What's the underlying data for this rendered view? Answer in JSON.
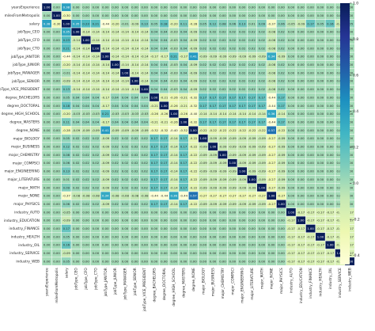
{
  "chart_data": {
    "type": "heatmap",
    "title": "",
    "xlabel": "",
    "ylabel": "",
    "labels": [
      "yearsExperience",
      "milesFromMetropolis",
      "salary",
      "jobType_CEO",
      "jobType_CFO",
      "jobType_CTO",
      "jobType_JANITOR",
      "jobType_JUNIOR",
      "jobType_MANAGER",
      "jobType_SENIOR",
      "jobType_VICE_PRESIDENT",
      "degree_BACHELORS",
      "degree_DOCTORAL",
      "degree_HIGH_SCHOOL",
      "degree_MASTERS",
      "degree_NONE",
      "major_BIOLOGY",
      "major_BUSINESS",
      "major_CHEMISTRY",
      "major_COMPSCI",
      "major_ENGINEERING",
      "major_LITERATURE",
      "major_MATH",
      "major_NONE",
      "major_PHYSICS",
      "industry_AUTO",
      "industry_EDUCATION",
      "industry_FINANCE",
      "industry_HEALTH",
      "industry_OIL",
      "industry_SERVICE",
      "industry_WEB"
    ],
    "values": [
      [
        1.0,
        0.0,
        0.38,
        0.0,
        0.0,
        0.0,
        0.0,
        0.0,
        0.0,
        0.0,
        0.0,
        0.0,
        0.0,
        0.0,
        0.0,
        0.0,
        0.0,
        0.0,
        0.0,
        0.0,
        0.0,
        0.0,
        0.0,
        0.0,
        0.0,
        0.0,
        0.0,
        0.0,
        0.0,
        0.0,
        0.0,
        0.0
      ],
      [
        0.0,
        1.0,
        -0.3,
        0.0,
        0.0,
        0.0,
        0.0,
        0.0,
        0.0,
        0.0,
        0.0,
        0.0,
        0.0,
        0.0,
        0.0,
        0.0,
        0.0,
        0.0,
        0.0,
        0.0,
        0.0,
        0.0,
        0.0,
        0.0,
        0.0,
        0.0,
        0.0,
        0.0,
        0.0,
        0.0,
        0.0,
        0.0
      ],
      [
        0.38,
        -0.3,
        1.0,
        0.35,
        0.23,
        0.21,
        -0.44,
        -0.2,
        -0.01,
        -0.09,
        0.13,
        0.05,
        0.18,
        -0.2,
        0.11,
        -0.28,
        0.05,
        0.12,
        0.08,
        0.06,
        0.13,
        0.01,
        0.09,
        -0.37,
        0.06,
        -0.05,
        -0.09,
        0.17,
        0.05,
        0.16,
        -0.09,
        0.05
      ],
      [
        0.0,
        0.0,
        0.35,
        1.0,
        -0.14,
        -0.14,
        -0.14,
        -0.14,
        -0.14,
        -0.14,
        -0.14,
        0.04,
        0.04,
        -0.03,
        0.04,
        -0.09,
        0.02,
        0.02,
        0.02,
        0.02,
        0.02,
        0.02,
        0.02,
        -0.08,
        0.02,
        0.0,
        0.0,
        0.0,
        0.0,
        0.0,
        0.0,
        0.0
      ],
      [
        0.0,
        0.0,
        0.23,
        -0.14,
        1.0,
        -0.14,
        -0.14,
        -0.14,
        -0.14,
        -0.14,
        -0.14,
        0.04,
        0.04,
        -0.03,
        0.04,
        -0.09,
        0.02,
        0.02,
        0.02,
        0.02,
        0.02,
        0.02,
        0.02,
        -0.08,
        0.02,
        0.0,
        0.0,
        0.0,
        0.0,
        0.0,
        0.0,
        0.0
      ],
      [
        0.0,
        0.0,
        0.21,
        -0.14,
        -0.14,
        1.0,
        -0.14,
        -0.14,
        -0.14,
        -0.14,
        -0.14,
        0.04,
        0.04,
        -0.03,
        0.04,
        -0.09,
        0.02,
        0.02,
        0.02,
        0.02,
        0.02,
        0.02,
        0.02,
        -0.08,
        0.02,
        0.0,
        0.0,
        0.0,
        0.0,
        0.0,
        0.0,
        0.0
      ],
      [
        0.0,
        0.0,
        -0.44,
        -0.14,
        -0.14,
        -0.14,
        1.0,
        -0.14,
        -0.14,
        -0.14,
        -0.14,
        -0.17,
        -0.17,
        0.21,
        -0.17,
        0.41,
        -0.09,
        -0.09,
        -0.09,
        -0.09,
        -0.09,
        -0.09,
        -0.09,
        0.34,
        -0.09,
        0.0,
        0.0,
        0.0,
        0.0,
        0.0,
        0.0,
        0.0
      ],
      [
        0.0,
        0.0,
        -0.2,
        -0.14,
        -0.14,
        -0.14,
        -0.14,
        1.0,
        -0.14,
        -0.14,
        -0.14,
        0.04,
        0.04,
        -0.03,
        0.04,
        -0.09,
        0.02,
        0.02,
        0.02,
        0.02,
        0.02,
        0.02,
        0.02,
        -0.08,
        0.02,
        0.0,
        0.0,
        0.0,
        0.0,
        0.0,
        0.0,
        0.0
      ],
      [
        0.0,
        0.0,
        -0.01,
        -0.14,
        -0.14,
        -0.14,
        -0.14,
        -0.14,
        1.0,
        -0.14,
        -0.14,
        0.04,
        0.04,
        -0.03,
        0.04,
        -0.09,
        0.02,
        0.02,
        0.02,
        0.02,
        0.02,
        0.02,
        0.02,
        -0.08,
        0.02,
        0.0,
        0.0,
        0.0,
        0.0,
        0.0,
        0.0,
        0.0
      ],
      [
        0.0,
        0.0,
        -0.09,
        -0.14,
        -0.14,
        -0.14,
        -0.14,
        -0.14,
        -0.14,
        1.0,
        -0.14,
        0.04,
        0.04,
        -0.03,
        0.04,
        -0.09,
        0.02,
        0.02,
        0.02,
        0.02,
        0.02,
        0.02,
        0.02,
        -0.08,
        0.02,
        0.0,
        0.0,
        0.0,
        0.0,
        0.0,
        0.0,
        0.0
      ],
      [
        0.0,
        0.0,
        0.13,
        -0.14,
        -0.14,
        -0.14,
        -0.14,
        -0.14,
        -0.14,
        -0.14,
        1.0,
        0.04,
        0.04,
        -0.03,
        0.04,
        -0.09,
        0.02,
        0.02,
        0.02,
        0.02,
        0.02,
        0.02,
        0.02,
        -0.08,
        0.02,
        0.0,
        0.0,
        0.0,
        0.0,
        0.0,
        0.0,
        0.0
      ],
      [
        0.0,
        0.0,
        0.05,
        0.04,
        0.04,
        0.04,
        -0.17,
        0.04,
        0.04,
        0.04,
        0.04,
        1.0,
        -0.21,
        -0.26,
        -0.21,
        -0.32,
        0.17,
        0.17,
        0.17,
        0.17,
        0.17,
        0.17,
        0.17,
        -0.44,
        0.17,
        0.0,
        0.0,
        0.0,
        0.0,
        0.0,
        0.0,
        0.0
      ],
      [
        0.0,
        0.0,
        0.18,
        0.04,
        0.04,
        0.04,
        -0.17,
        0.04,
        0.04,
        0.04,
        0.04,
        -0.21,
        1.0,
        -0.26,
        -0.21,
        -0.32,
        0.17,
        0.17,
        0.17,
        0.17,
        0.17,
        0.17,
        0.17,
        -0.44,
        0.17,
        0.0,
        0.0,
        0.0,
        0.0,
        0.0,
        0.0,
        0.0
      ],
      [
        0.0,
        0.0,
        -0.2,
        -0.03,
        -0.03,
        -0.03,
        0.21,
        -0.03,
        -0.03,
        -0.03,
        -0.03,
        -0.26,
        -0.26,
        1.0,
        -0.26,
        -0.4,
        -0.14,
        -0.14,
        -0.14,
        -0.14,
        -0.14,
        -0.14,
        -0.14,
        0.36,
        -0.14,
        0.0,
        0.0,
        0.0,
        0.0,
        0.0,
        0.0,
        0.0
      ],
      [
        0.0,
        0.0,
        0.11,
        0.04,
        0.04,
        0.04,
        -0.17,
        0.04,
        0.04,
        0.04,
        0.04,
        -0.21,
        -0.21,
        -0.26,
        1.0,
        -0.32,
        0.17,
        0.17,
        0.17,
        0.17,
        0.17,
        0.17,
        0.17,
        -0.44,
        0.17,
        0.0,
        0.0,
        0.0,
        0.0,
        0.0,
        0.0,
        0.0
      ],
      [
        0.0,
        0.0,
        -0.28,
        -0.09,
        -0.09,
        -0.09,
        0.41,
        -0.09,
        -0.09,
        -0.09,
        -0.09,
        -0.32,
        -0.32,
        -0.4,
        -0.32,
        1.0,
        -0.22,
        -0.22,
        -0.22,
        -0.22,
        -0.22,
        -0.22,
        -0.22,
        0.57,
        -0.22,
        0.0,
        0.0,
        0.0,
        0.0,
        0.0,
        0.0,
        0.0
      ],
      [
        0.0,
        0.0,
        0.05,
        0.02,
        0.02,
        0.02,
        -0.09,
        0.02,
        0.02,
        0.02,
        0.02,
        0.17,
        0.17,
        -0.14,
        0.17,
        -0.22,
        1.0,
        -0.09,
        -0.09,
        -0.09,
        -0.09,
        -0.09,
        -0.09,
        -0.27,
        -0.09,
        0.0,
        0.0,
        0.0,
        0.0,
        0.0,
        0.0,
        0.0
      ],
      [
        0.0,
        0.0,
        0.12,
        0.02,
        0.02,
        0.02,
        -0.09,
        0.02,
        0.02,
        0.02,
        0.02,
        0.17,
        0.17,
        -0.14,
        0.17,
        -0.22,
        -0.09,
        1.0,
        -0.09,
        -0.09,
        -0.09,
        -0.09,
        -0.09,
        -0.27,
        -0.09,
        0.0,
        0.0,
        0.0,
        0.0,
        0.0,
        0.0,
        0.0
      ],
      [
        0.0,
        0.0,
        0.08,
        0.02,
        0.02,
        0.02,
        -0.09,
        0.02,
        0.02,
        0.02,
        0.02,
        0.17,
        0.17,
        -0.14,
        0.17,
        -0.22,
        -0.09,
        -0.09,
        1.0,
        -0.09,
        -0.09,
        -0.09,
        -0.09,
        -0.27,
        -0.09,
        0.0,
        0.0,
        0.0,
        0.0,
        0.0,
        0.0,
        0.0
      ],
      [
        0.0,
        0.0,
        0.06,
        0.02,
        0.02,
        0.02,
        -0.09,
        0.02,
        0.02,
        0.02,
        0.02,
        0.17,
        0.17,
        -0.14,
        0.17,
        -0.22,
        -0.09,
        -0.09,
        -0.09,
        1.0,
        -0.09,
        -0.09,
        -0.09,
        -0.27,
        -0.09,
        0.0,
        0.0,
        0.0,
        0.0,
        0.0,
        0.0,
        0.0
      ],
      [
        0.0,
        0.0,
        0.13,
        0.02,
        0.02,
        0.02,
        -0.09,
        0.02,
        0.02,
        0.02,
        0.02,
        0.17,
        0.17,
        -0.14,
        0.17,
        -0.22,
        -0.09,
        -0.09,
        -0.09,
        -0.09,
        1.0,
        -0.09,
        -0.09,
        -0.27,
        -0.09,
        0.0,
        0.0,
        0.0,
        0.0,
        0.0,
        0.0,
        0.0
      ],
      [
        0.0,
        0.0,
        0.01,
        0.02,
        0.02,
        0.02,
        -0.09,
        0.02,
        0.02,
        0.02,
        0.02,
        0.17,
        0.17,
        -0.14,
        0.17,
        -0.22,
        -0.09,
        -0.09,
        -0.09,
        -0.09,
        -0.09,
        1.0,
        -0.09,
        -0.27,
        -0.09,
        0.0,
        0.0,
        0.0,
        0.0,
        0.0,
        0.0,
        0.0
      ],
      [
        0.0,
        0.0,
        0.09,
        0.02,
        0.02,
        0.02,
        -0.09,
        0.02,
        0.02,
        0.02,
        0.02,
        0.17,
        0.17,
        -0.14,
        0.17,
        -0.22,
        -0.09,
        -0.09,
        -0.09,
        -0.09,
        -0.09,
        -0.09,
        1.0,
        -0.27,
        -0.09,
        0.0,
        0.0,
        0.0,
        0.0,
        0.0,
        0.0,
        0.0
      ],
      [
        0.0,
        0.0,
        -0.37,
        -0.08,
        -0.08,
        -0.08,
        0.34,
        -0.08,
        -0.08,
        -0.08,
        -0.08,
        -0.44,
        -0.44,
        0.36,
        -0.44,
        0.57,
        -0.27,
        -0.27,
        -0.27,
        -0.27,
        -0.27,
        -0.27,
        -0.27,
        1.0,
        -0.27,
        0.0,
        0.0,
        0.0,
        0.0,
        0.0,
        0.0,
        0.0
      ],
      [
        0.0,
        0.0,
        0.06,
        0.02,
        0.02,
        0.02,
        -0.09,
        0.02,
        0.02,
        0.02,
        0.02,
        0.17,
        0.17,
        -0.14,
        0.17,
        -0.22,
        -0.09,
        -0.09,
        -0.09,
        -0.09,
        -0.09,
        -0.09,
        -0.09,
        -0.27,
        1.0,
        0.0,
        0.0,
        0.0,
        0.0,
        0.0,
        0.0,
        0.0
      ],
      [
        0.0,
        0.0,
        -0.05,
        0.0,
        0.0,
        0.0,
        0.0,
        0.0,
        0.0,
        0.0,
        0.0,
        0.0,
        0.0,
        0.0,
        0.0,
        0.0,
        0.0,
        0.0,
        0.0,
        0.0,
        0.0,
        0.0,
        0.0,
        0.0,
        0.0,
        1.0,
        -0.17,
        -0.17,
        -0.17,
        -0.17,
        -0.17,
        -0.17
      ],
      [
        0.0,
        0.0,
        -0.09,
        0.0,
        0.0,
        0.0,
        0.0,
        0.0,
        0.0,
        0.0,
        0.0,
        0.0,
        0.0,
        0.0,
        0.0,
        0.0,
        0.0,
        0.0,
        0.0,
        0.0,
        0.0,
        0.0,
        0.0,
        0.0,
        0.0,
        -0.17,
        1.0,
        -0.17,
        -0.17,
        -0.17,
        -0.17,
        -0.17
      ],
      [
        0.0,
        0.0,
        0.17,
        0.0,
        0.0,
        0.0,
        0.0,
        0.0,
        0.0,
        0.0,
        0.0,
        0.0,
        0.0,
        0.0,
        0.0,
        0.0,
        0.0,
        0.0,
        0.0,
        0.0,
        0.0,
        0.0,
        0.0,
        0.0,
        0.0,
        -0.17,
        -0.17,
        1.0,
        -0.17,
        -0.17,
        -0.17,
        -0.17
      ],
      [
        0.0,
        0.0,
        0.05,
        0.0,
        0.0,
        0.0,
        0.0,
        0.0,
        0.0,
        0.0,
        0.0,
        0.0,
        0.0,
        0.0,
        0.0,
        0.0,
        0.0,
        0.0,
        0.0,
        0.0,
        0.0,
        0.0,
        0.0,
        0.0,
        0.0,
        -0.17,
        -0.17,
        -0.17,
        1.0,
        -0.17,
        -0.17,
        -0.17
      ],
      [
        0.0,
        0.0,
        0.16,
        0.0,
        0.0,
        0.0,
        0.0,
        0.0,
        0.0,
        0.0,
        0.0,
        0.0,
        0.0,
        0.0,
        0.0,
        0.0,
        0.0,
        0.0,
        0.0,
        0.0,
        0.0,
        0.0,
        0.0,
        0.0,
        0.0,
        -0.17,
        -0.17,
        -0.17,
        -0.17,
        1.0,
        -0.17,
        -0.17
      ],
      [
        0.0,
        0.0,
        -0.09,
        0.0,
        0.0,
        0.0,
        0.0,
        0.0,
        0.0,
        0.0,
        0.0,
        0.0,
        0.0,
        0.0,
        0.0,
        0.0,
        0.0,
        0.0,
        0.0,
        0.0,
        0.0,
        0.0,
        0.0,
        0.0,
        0.0,
        -0.17,
        -0.17,
        -0.17,
        -0.17,
        -0.17,
        1.0,
        -0.17
      ],
      [
        0.0,
        0.0,
        0.05,
        0.0,
        0.0,
        0.0,
        0.0,
        0.0,
        0.0,
        0.0,
        0.0,
        0.0,
        0.0,
        0.0,
        0.0,
        0.0,
        0.0,
        0.0,
        0.0,
        0.0,
        0.0,
        0.0,
        0.0,
        0.0,
        0.0,
        -0.17,
        -0.17,
        -0.17,
        -0.17,
        -0.17,
        -0.17,
        1.0
      ]
    ],
    "value_range": [
      -0.45,
      1.0
    ],
    "colorbar_ticks": [
      {
        "value": 1.0,
        "label": "1.0"
      },
      {
        "value": 0.8,
        "label": "0.8"
      },
      {
        "value": 0.6,
        "label": "0.6"
      },
      {
        "value": 0.4,
        "label": "0.4"
      },
      {
        "value": 0.2,
        "label": "0.2"
      },
      {
        "value": 0.0,
        "label": "0.0"
      },
      {
        "value": -0.2,
        "label": "-0.2"
      },
      {
        "value": -0.4,
        "label": "-0.4"
      }
    ],
    "colormap": "YlGnBu",
    "colormap_stops": [
      "#ffffd9",
      "#edf8b1",
      "#c7e9b4",
      "#7fcdbb",
      "#41b6c4",
      "#1d91c0",
      "#225ea8",
      "#253494",
      "#081d58"
    ],
    "annotation_format": "0.00",
    "grid": true,
    "legend": "colorbar-right"
  }
}
